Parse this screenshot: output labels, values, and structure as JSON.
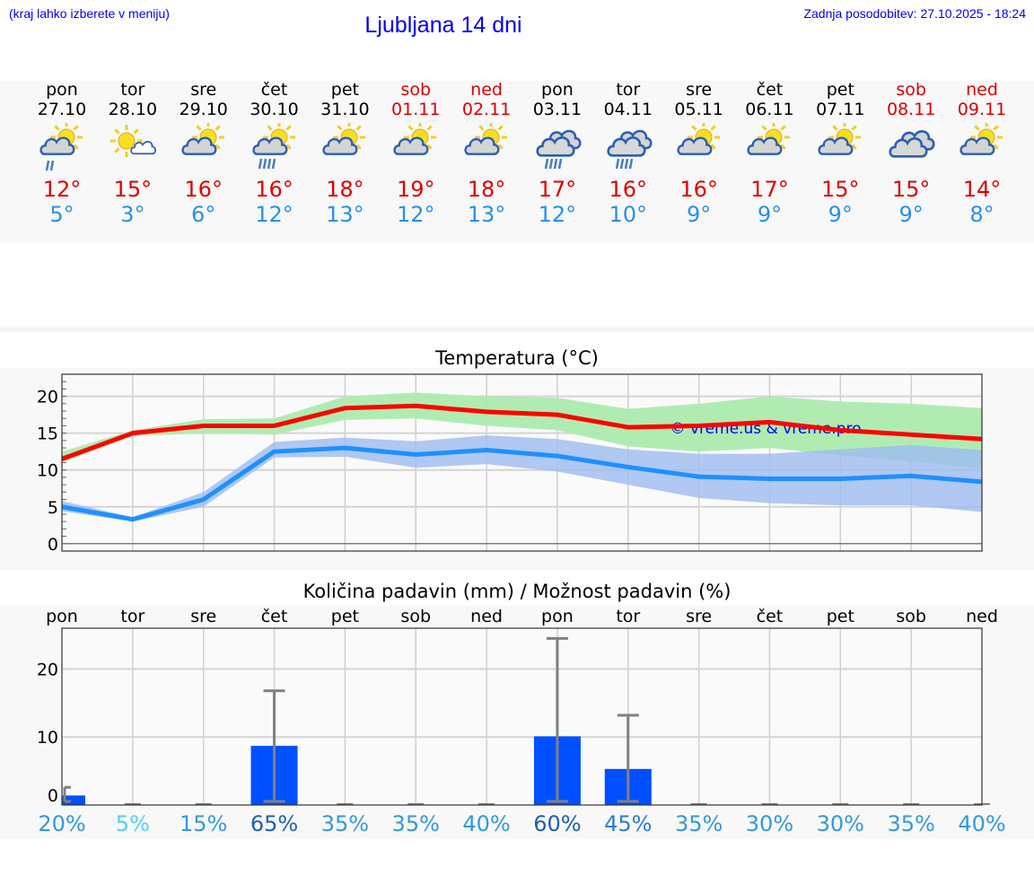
{
  "header": {
    "hint": "(kraj lahko izberete v meniju)",
    "title": "Ljubljana 14 dni",
    "updated": "Zadnja posodobitev: 27.10.2025 - 18:24"
  },
  "days": [
    {
      "name": "pon",
      "date": "27.10",
      "weekend": false,
      "icon": "partly-cloudy-light-rain-icon",
      "max": "12°",
      "min": "5°"
    },
    {
      "name": "tor",
      "date": "28.10",
      "weekend": false,
      "icon": "sunny-small-cloud-icon",
      "max": "15°",
      "min": "3°"
    },
    {
      "name": "sre",
      "date": "29.10",
      "weekend": false,
      "icon": "partly-cloudy-icon",
      "max": "16°",
      "min": "6°"
    },
    {
      "name": "čet",
      "date": "30.10",
      "weekend": false,
      "icon": "partly-cloudy-rain-icon",
      "max": "16°",
      "min": "12°"
    },
    {
      "name": "pet",
      "date": "31.10",
      "weekend": false,
      "icon": "partly-cloudy-icon",
      "max": "18°",
      "min": "13°"
    },
    {
      "name": "sob",
      "date": "01.11",
      "weekend": true,
      "icon": "partly-cloudy-icon",
      "max": "19°",
      "min": "12°"
    },
    {
      "name": "ned",
      "date": "02.11",
      "weekend": true,
      "icon": "partly-cloudy-icon",
      "max": "18°",
      "min": "13°"
    },
    {
      "name": "pon",
      "date": "03.11",
      "weekend": false,
      "icon": "cloudy-rain-icon",
      "max": "17°",
      "min": "12°"
    },
    {
      "name": "tor",
      "date": "04.11",
      "weekend": false,
      "icon": "cloudy-rain-icon",
      "max": "16°",
      "min": "10°"
    },
    {
      "name": "sre",
      "date": "05.11",
      "weekend": false,
      "icon": "partly-cloudy-icon",
      "max": "16°",
      "min": "9°"
    },
    {
      "name": "čet",
      "date": "06.11",
      "weekend": false,
      "icon": "partly-cloudy-icon",
      "max": "17°",
      "min": "9°"
    },
    {
      "name": "pet",
      "date": "07.11",
      "weekend": false,
      "icon": "partly-cloudy-icon",
      "max": "15°",
      "min": "9°"
    },
    {
      "name": "sob",
      "date": "08.11",
      "weekend": true,
      "icon": "cloudy-icon",
      "max": "15°",
      "min": "9°"
    },
    {
      "name": "ned",
      "date": "09.11",
      "weekend": true,
      "icon": "partly-cloudy-icon",
      "max": "14°",
      "min": "8°"
    }
  ],
  "colors": {
    "max": "#ff0000",
    "min": "#1e90ff",
    "max_band": "#acebae",
    "min_band": "#9dbbf0",
    "bar": "#0050ff",
    "error": "#808080",
    "weekend": "#dd0000",
    "watermark": "#0000ee"
  },
  "chart_data": [
    {
      "type": "line",
      "title": "Temperatura (°C)",
      "ylim": [
        -1,
        23
      ],
      "yticks": [
        "0",
        "5",
        "10",
        "15",
        "20"
      ],
      "grid": true,
      "watermark": "© vreme.us & vreme.pro",
      "series": [
        {
          "values": [
            11.5,
            15,
            16,
            16,
            18.4,
            18.7,
            17.9,
            17.5,
            15.8,
            16,
            16.5,
            15.4,
            14.8,
            14.2
          ],
          "band_low": [
            11,
            14.6,
            15,
            14.8,
            16.8,
            17,
            16,
            15.4,
            13.2,
            12.5,
            13,
            12,
            11.2,
            10.2
          ],
          "band_high": [
            12.5,
            15.4,
            16.9,
            17,
            20,
            20.5,
            20,
            19.8,
            18.3,
            19,
            20,
            19.3,
            19,
            18.4
          ]
        },
        {
          "values": [
            5,
            3.3,
            6,
            12.5,
            13,
            12.1,
            12.7,
            11.9,
            10.4,
            9.1,
            8.8,
            8.8,
            9.2,
            8.4
          ],
          "band_low": [
            4.4,
            3,
            5,
            11.7,
            11.8,
            10.3,
            10.8,
            9.8,
            8,
            6.2,
            5.5,
            5.2,
            5.2,
            4.3
          ],
          "band_high": [
            5.8,
            3.6,
            7,
            13.8,
            14.4,
            13.9,
            14.7,
            14.2,
            12.8,
            12.2,
            12.2,
            12.8,
            13.4,
            12.7
          ]
        }
      ]
    },
    {
      "type": "bar",
      "title": "Količina padavin (mm) / Možnost padavin (%)",
      "categories": [
        "pon",
        "tor",
        "sre",
        "čet",
        "pet",
        "sob",
        "ned",
        "pon",
        "tor",
        "sre",
        "čet",
        "pet",
        "sob",
        "ned"
      ],
      "ylim": [
        0,
        26
      ],
      "yticks": [
        "0",
        "10",
        "20"
      ],
      "grid": true,
      "values": [
        1.4,
        0,
        0,
        8.7,
        0,
        0,
        0,
        10.1,
        5.3,
        0,
        0,
        0,
        0,
        0
      ],
      "error_high": [
        2.6,
        0,
        0,
        16.8,
        0,
        0,
        0,
        24.5,
        13.2,
        0,
        0,
        0,
        0,
        0
      ],
      "probability": [
        "20%",
        "5%",
        "15%",
        "65%",
        "35%",
        "35%",
        "40%",
        "60%",
        "45%",
        "35%",
        "30%",
        "30%",
        "35%",
        "40%"
      ],
      "probability_colors": [
        "#3399dd",
        "#55d0ee",
        "#3399dd",
        "#1f5fb0",
        "#3399dd",
        "#3399dd",
        "#3399dd",
        "#1f5fb0",
        "#2a7fcc",
        "#3399dd",
        "#3399dd",
        "#3399dd",
        "#3399dd",
        "#3399dd"
      ]
    }
  ]
}
